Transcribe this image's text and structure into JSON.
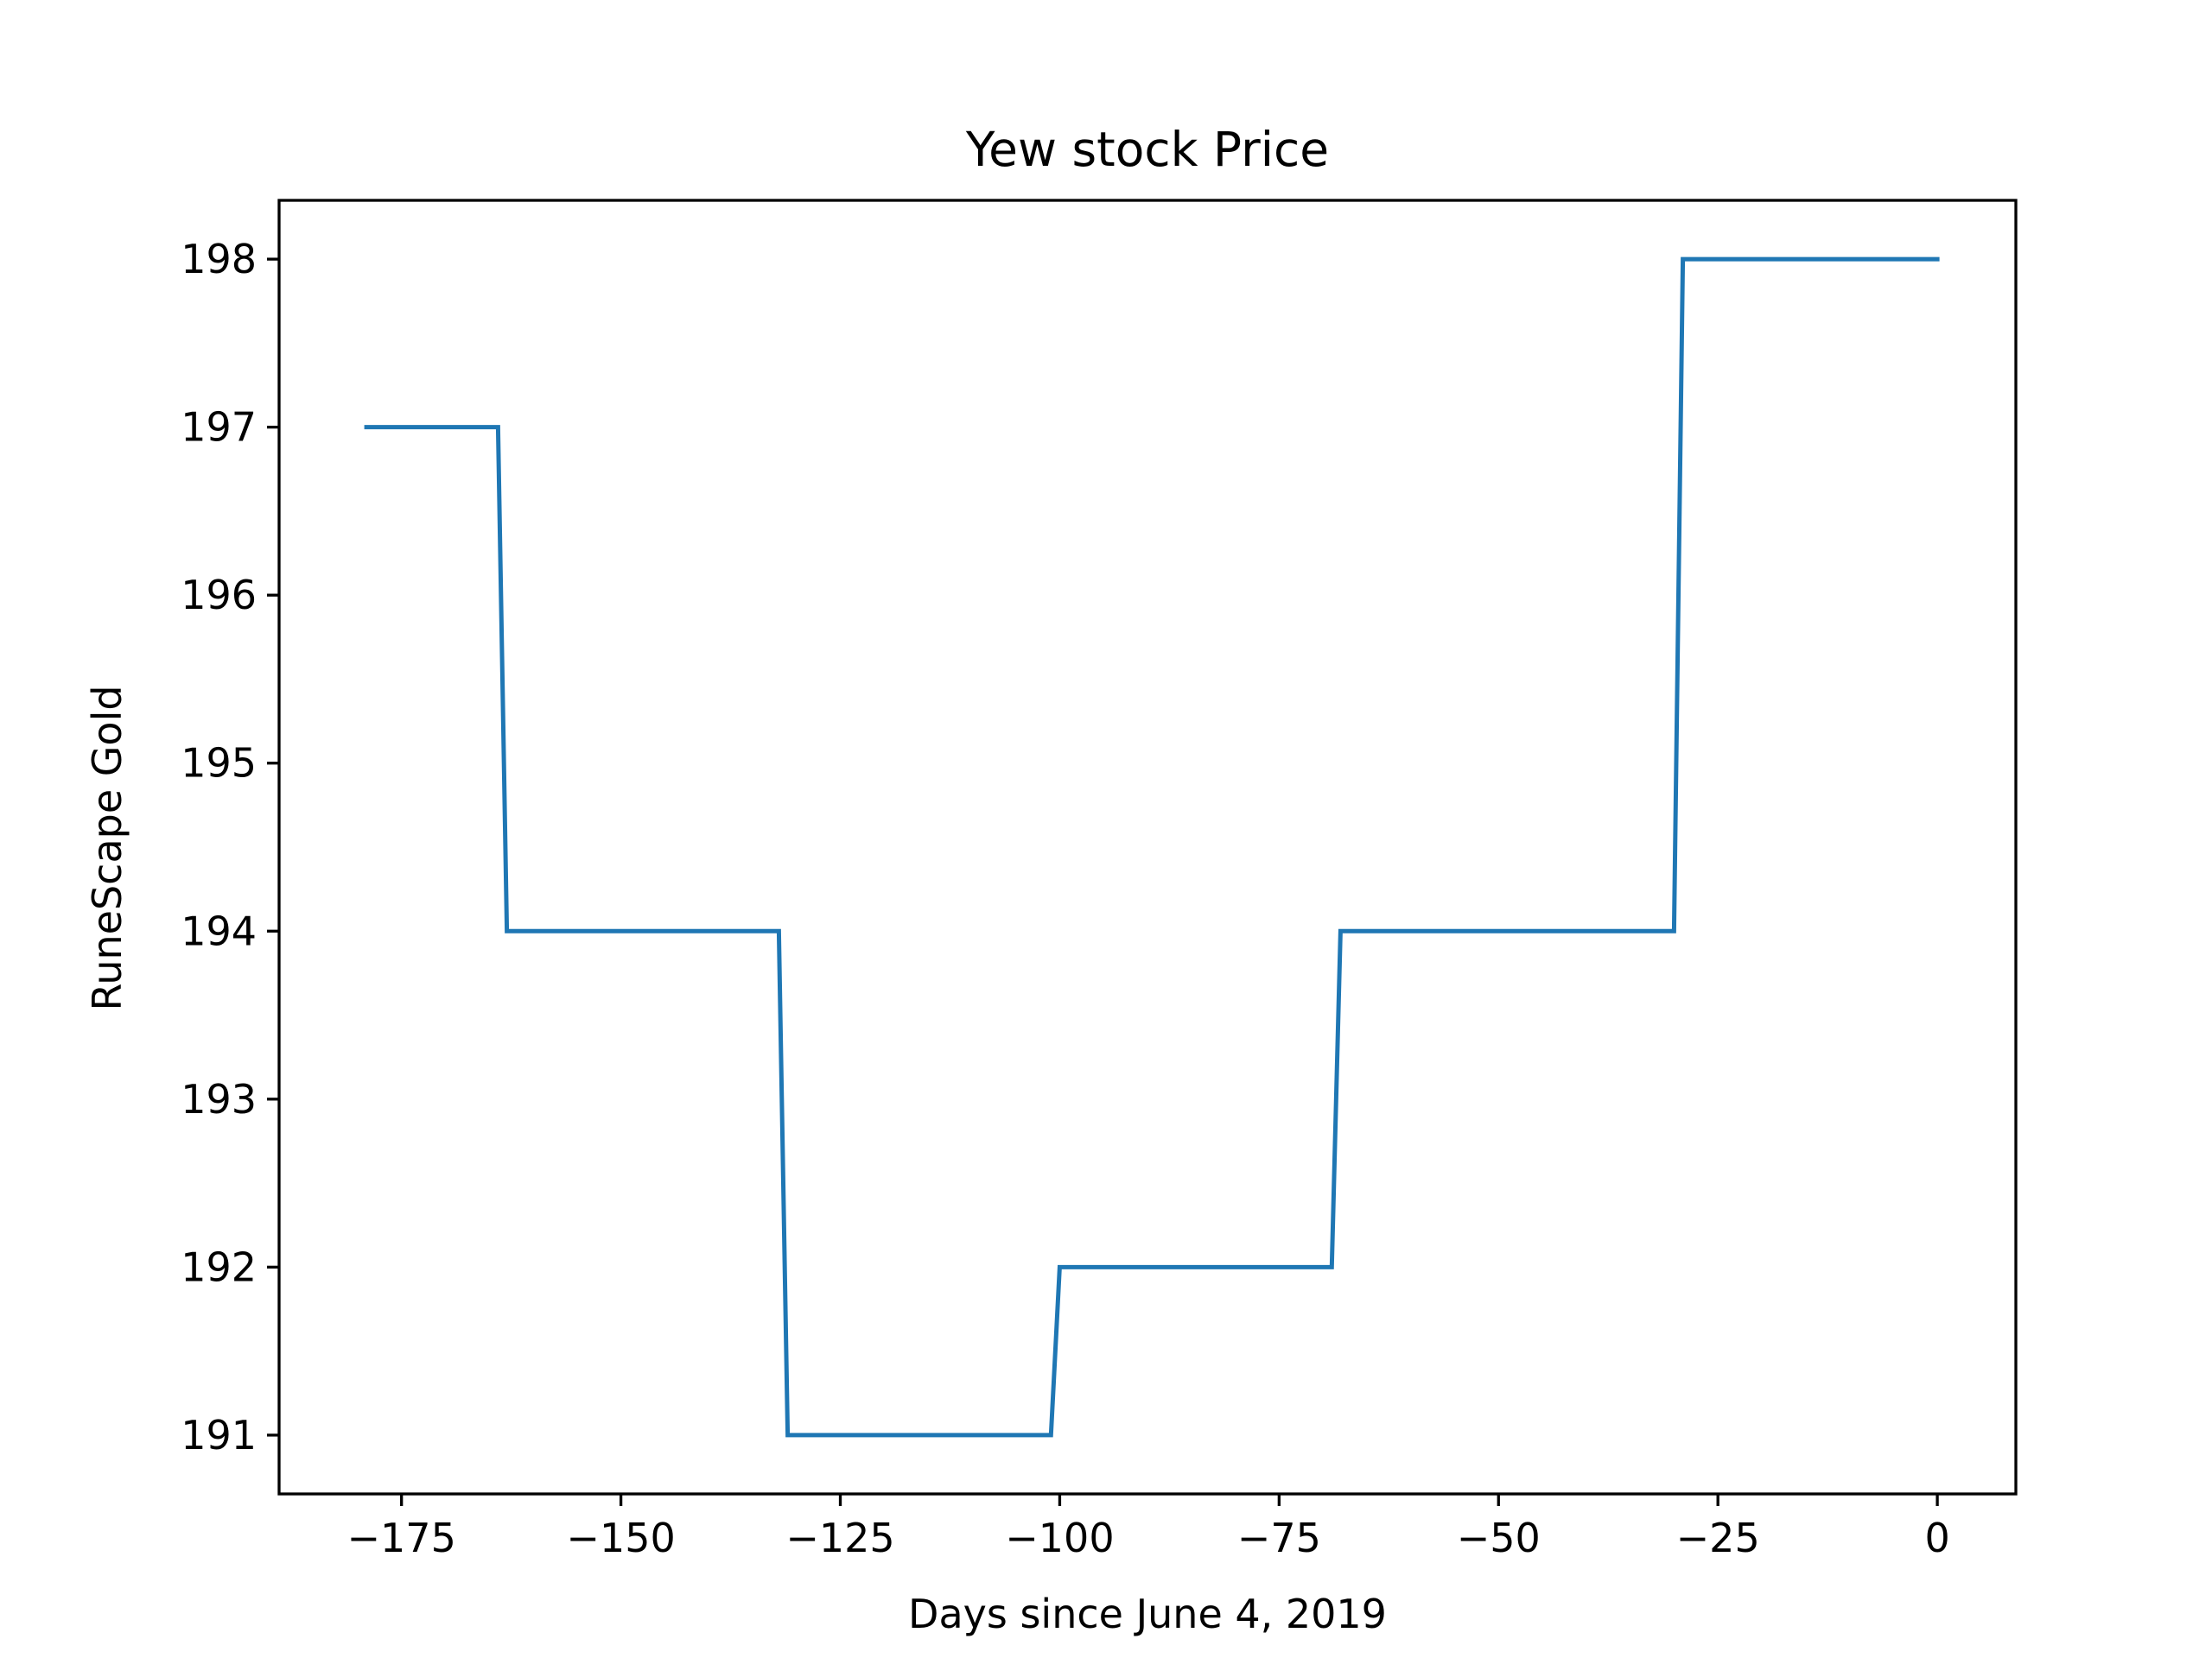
{
  "chart_data": {
    "type": "line",
    "title": "Yew stock Price",
    "xlabel": "Days since June 4, 2019",
    "ylabel": "RuneScape Gold",
    "xlim": [
      -188.95,
      8.95
    ],
    "ylim": [
      190.65,
      198.35
    ],
    "xticks": [
      -175,
      -150,
      -125,
      -100,
      -75,
      -50,
      -25,
      0
    ],
    "xtick_labels": [
      "−175",
      "−150",
      "−125",
      "−100",
      "−75",
      "−50",
      "−25",
      "0"
    ],
    "yticks": [
      191,
      192,
      193,
      194,
      195,
      196,
      197,
      198
    ],
    "ytick_labels": [
      "191",
      "192",
      "193",
      "194",
      "195",
      "196",
      "197",
      "198"
    ],
    "grid": false,
    "series": [
      {
        "color": "#1f77b4",
        "x": [
          -179,
          -164,
          -163,
          -132,
          -131,
          -101,
          -100,
          -69,
          -68,
          -30,
          -29,
          0
        ],
        "y": [
          197,
          197,
          194,
          194,
          191,
          191,
          192,
          192,
          194,
          194,
          198,
          198
        ]
      }
    ]
  }
}
